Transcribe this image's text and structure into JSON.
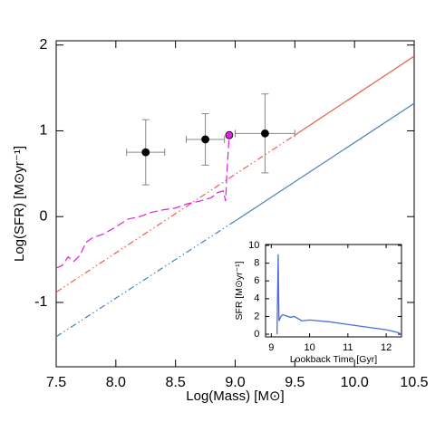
{
  "chart_data": [
    {
      "type": "line",
      "x_label": "Log(Mass) [M⊙]",
      "y_label": "Log(SFR) [M⊙yr⁻¹]",
      "xlim": [
        7.5,
        10.5
      ],
      "ylim": [
        -1.75,
        2.05
      ],
      "xticks": [
        7.5,
        {
          "value": 8,
          "label": "8.0"
        },
        8.5,
        {
          "value": 9,
          "label": "9.0"
        },
        9.5,
        {
          "value": 10,
          "label": "10.0"
        },
        10.5
      ],
      "yticks": [
        -1,
        0,
        1,
        2
      ],
      "series": [
        {
          "color": "#e8604c",
          "dash": "dash-dot-dot",
          "x": [
            7.5,
            9.5
          ],
          "values": [
            -0.88,
            0.95
          ]
        },
        {
          "color": "#e8604c",
          "dash": "solid",
          "x": [
            9.5,
            10.5
          ],
          "values": [
            0.95,
            1.87
          ]
        },
        {
          "color": "#4a80b8",
          "dash": "dash-dot-dot",
          "x": [
            7.5,
            9.0
          ],
          "values": [
            -1.4,
            -0.05
          ]
        },
        {
          "color": "#4a80b8",
          "dash": "solid",
          "x": [
            9.0,
            10.5
          ],
          "values": [
            -0.05,
            1.32
          ]
        },
        {
          "color": "#e020e0",
          "dash": "dashed",
          "x": [
            7.5,
            7.55,
            7.6,
            7.65,
            7.7,
            7.75,
            7.8,
            7.9,
            8.0,
            8.1,
            8.2,
            8.3,
            8.4,
            8.5,
            8.6,
            8.7,
            8.8,
            8.85,
            8.9,
            8.92,
            8.93,
            8.95
          ],
          "values": [
            -0.6,
            -0.57,
            -0.47,
            -0.52,
            -0.45,
            -0.3,
            -0.25,
            -0.2,
            -0.12,
            -0.03,
            0.0,
            0.05,
            0.08,
            0.1,
            0.15,
            0.18,
            0.22,
            0.28,
            0.3,
            0.18,
            0.5,
            0.95
          ]
        }
      ],
      "points": [
        {
          "x": 8.25,
          "y": 0.75,
          "xerr": 0.16,
          "yerr": 0.38,
          "color": "#000000"
        },
        {
          "x": 8.75,
          "y": 0.9,
          "xerr": 0.16,
          "yerr": 0.3,
          "color": "#000000"
        },
        {
          "x": 9.25,
          "y": 0.97,
          "xerr": 0.25,
          "yerr": 0.46,
          "color": "#000000"
        },
        {
          "x": 8.95,
          "y": 0.95,
          "color": "#e020e0"
        }
      ]
    },
    {
      "type": "line",
      "x_label": "Lookback Time [Gyr]",
      "y_label": "SFR [M⊙yr⁻¹]",
      "xlim": [
        8.85,
        12.4
      ],
      "ylim": [
        -0.3,
        10.1
      ],
      "xticks": [
        9,
        10,
        11,
        12
      ],
      "yticks": [
        0,
        2,
        4,
        6,
        8,
        10
      ],
      "series": [
        {
          "color": "#4a6fd8",
          "dash": "solid",
          "x": [
            9.15,
            9.18,
            9.2,
            9.25,
            9.3,
            9.5,
            9.6,
            9.8,
            10,
            10.5,
            11,
            11.5,
            12,
            12.3,
            12.4
          ],
          "values": [
            0,
            9,
            1.5,
            2,
            2.2,
            1.9,
            2,
            1.5,
            1.6,
            1.4,
            1.1,
            0.8,
            0.5,
            0.2,
            0
          ]
        }
      ]
    }
  ]
}
